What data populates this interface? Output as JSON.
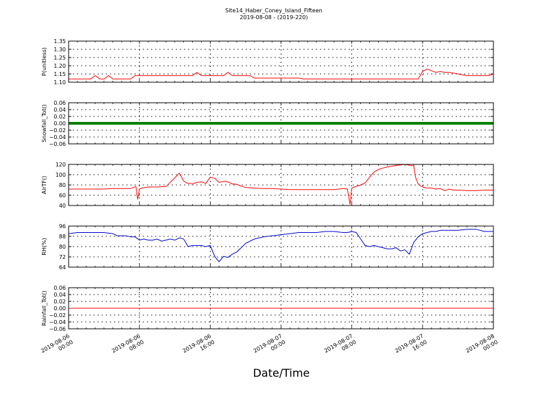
{
  "title": "Site14_Haber_Coney_Island_Fifteen",
  "subtitle": "2019-08-08 - (2019-220)",
  "xlabel": "Date/Time",
  "x_ticks": [
    [
      "2019-08-06",
      "00:00"
    ],
    [
      "2019-08-06",
      "08:00"
    ],
    [
      "2019-08-06",
      "16:00"
    ],
    [
      "2019-08-07",
      "00:00"
    ],
    [
      "2019-08-07",
      "08:00"
    ],
    [
      "2019-08-07",
      "16:00"
    ],
    [
      "2019-08-08",
      "00:00"
    ]
  ],
  "chart_data": [
    {
      "type": "line",
      "ylabel": "P(unitless)",
      "ylim": [
        1.1,
        1.35
      ],
      "yticks": [
        "1.10",
        "1.15",
        "1.20",
        "1.25",
        "1.30",
        "1.35"
      ],
      "grid": true,
      "series": [
        {
          "color": "#ff0000",
          "x": [
            0,
            0.5,
            1,
            1.5,
            2,
            2.5,
            3,
            3.5,
            4,
            4.5,
            5,
            5.5,
            6,
            6.5,
            7,
            7.5,
            8,
            8.5,
            9,
            9.5,
            10,
            10.5,
            11,
            11.5,
            12,
            12.5,
            13,
            13.5,
            14,
            14.5,
            15,
            15.5,
            16,
            16.5,
            17,
            17.5,
            18,
            18.5,
            19,
            19.5,
            20,
            20.5,
            21,
            21.5,
            22,
            22.5,
            23,
            23.5,
            24,
            24.5,
            25,
            25.5,
            26,
            26.5,
            27,
            27.5,
            28,
            28.5,
            29,
            29.5,
            30,
            30.5,
            31,
            31.5,
            32,
            32.5,
            33,
            33.5,
            34,
            34.5,
            35,
            35.5,
            36,
            36.5,
            37,
            37.5,
            38,
            38.5,
            39,
            39.5,
            40,
            40.5,
            41,
            41.5,
            42,
            42.5,
            43,
            43.5,
            44,
            44.5,
            45,
            45.5,
            46,
            46.5,
            47,
            47.5,
            48
          ],
          "y": [
            1.12,
            1.12,
            1.12,
            1.12,
            1.12,
            1.12,
            1.14,
            1.12,
            1.12,
            1.14,
            1.12,
            1.12,
            1.12,
            1.12,
            1.12,
            1.14,
            1.14,
            1.14,
            1.14,
            1.14,
            1.14,
            1.14,
            1.14,
            1.14,
            1.14,
            1.14,
            1.14,
            1.14,
            1.14,
            1.16,
            1.14,
            1.14,
            1.14,
            1.14,
            1.14,
            1.14,
            1.16,
            1.14,
            1.14,
            1.14,
            1.14,
            1.14,
            1.125,
            1.125,
            1.125,
            1.125,
            1.125,
            1.125,
            1.125,
            1.125,
            1.125,
            1.125,
            1.125,
            1.12,
            1.12,
            1.12,
            1.12,
            1.12,
            1.12,
            1.12,
            1.12,
            1.12,
            1.12,
            1.12,
            1.12,
            1.12,
            1.12,
            1.12,
            1.12,
            1.12,
            1.12,
            1.12,
            1.12,
            1.12,
            1.12,
            1.12,
            1.12,
            1.12,
            1.12,
            1.12,
            1.165,
            1.18,
            1.17,
            1.16,
            1.165,
            1.16,
            1.16,
            1.155,
            1.15,
            1.145,
            1.14,
            1.14,
            1.14,
            1.14,
            1.14,
            1.14,
            1.15
          ]
        }
      ]
    },
    {
      "type": "line",
      "ylabel": "Snowfall_Tot()",
      "ylim": [
        -0.06,
        0.06
      ],
      "yticks": [
        "−0.06",
        "−0.04",
        "−0.02",
        "0.00",
        "0.02",
        "0.04",
        "0.06"
      ],
      "grid": true,
      "series": [
        {
          "color": "#008000",
          "marker": "dot",
          "x": [
            0,
            48
          ],
          "y": [
            0,
            0
          ]
        }
      ]
    },
    {
      "type": "line",
      "ylabel": "AirTF()",
      "ylim": [
        40,
        120
      ],
      "yticks": [
        "40",
        "60",
        "80",
        "100",
        "120"
      ],
      "grid": true,
      "series": [
        {
          "color": "#ff0000",
          "x": [
            0,
            1,
            2,
            3,
            4,
            5,
            6,
            7,
            7.6,
            7.8,
            8,
            8.3,
            9,
            10,
            11,
            12,
            12.5,
            13,
            13.3,
            14,
            14.5,
            15,
            15.5,
            16,
            16.5,
            17,
            17.5,
            18,
            18.5,
            19,
            20,
            21,
            22,
            23,
            24,
            25,
            26,
            27,
            28,
            29,
            30,
            31,
            31.5,
            31.8,
            32,
            32.3,
            33,
            33.5,
            34,
            34.5,
            35,
            35.5,
            36,
            37,
            38,
            39,
            39.2,
            39.5,
            39.8,
            40,
            40.5,
            41,
            41.5,
            42,
            42.5,
            43,
            43.5,
            44,
            45,
            46,
            47,
            48
          ],
          "y": [
            72,
            72,
            72,
            72,
            72,
            73,
            73,
            73,
            77,
            52,
            72,
            74,
            76,
            76,
            77,
            94,
            103,
            88,
            84,
            82,
            85,
            86,
            83,
            95,
            93,
            85,
            87,
            86,
            82,
            81,
            75,
            74,
            73,
            73,
            72,
            71,
            71,
            71,
            71,
            71,
            71,
            73,
            72,
            42,
            74,
            76,
            80,
            84,
            95,
            105,
            110,
            113,
            115,
            118,
            120,
            117,
            95,
            82,
            78,
            76,
            74,
            74,
            72,
            73,
            69,
            72,
            70,
            70,
            69,
            69,
            70,
            70
          ]
        }
      ]
    },
    {
      "type": "line",
      "ylabel": "RH(%)",
      "ylim": [
        60,
        98
      ],
      "yticks": [
        "64",
        "72",
        "80",
        "88",
        "96"
      ],
      "grid": true,
      "series": [
        {
          "color": "#0000cc",
          "x": [
            0,
            1,
            2,
            3,
            4,
            5,
            5.5,
            6,
            6.5,
            7,
            7.5,
            8,
            8.5,
            9,
            9.5,
            10,
            10.5,
            11,
            11.5,
            12,
            12.5,
            13,
            13.5,
            14,
            14.5,
            15,
            15.5,
            16,
            16.5,
            17,
            17.5,
            18,
            18.5,
            19,
            19.5,
            20,
            21,
            22,
            23,
            24,
            25,
            26,
            27,
            28,
            29,
            30,
            31,
            31.5,
            32,
            32.5,
            33,
            33.5,
            34,
            34.5,
            35,
            35.5,
            36,
            36.5,
            37,
            37.5,
            38,
            38.5,
            39,
            39.5,
            40,
            40.5,
            41,
            41.5,
            42,
            42.5,
            43,
            44,
            45,
            46,
            47,
            48
          ],
          "y": [
            91,
            92,
            92,
            92,
            92,
            91,
            89,
            89,
            89,
            88,
            88,
            85,
            86,
            85,
            85,
            86,
            84,
            85,
            86,
            85,
            87,
            86,
            79,
            80,
            80,
            80,
            79,
            80,
            70,
            65,
            70,
            69,
            72,
            74,
            78,
            82,
            86,
            88,
            89,
            90,
            91,
            92,
            92,
            92,
            93,
            93,
            92,
            92,
            93,
            92,
            86,
            80,
            79,
            80,
            79,
            78,
            77,
            77,
            78,
            75,
            76,
            72,
            83,
            88,
            91,
            92,
            93,
            93,
            94,
            94,
            94,
            94,
            95,
            95,
            93,
            93
          ]
        }
      ]
    },
    {
      "type": "line",
      "ylabel": "Rainfall_Tot()",
      "ylim": [
        -0.06,
        0.06
      ],
      "yticks": [
        "−0.06",
        "−0.04",
        "−0.02",
        "0.00",
        "0.02",
        "0.04",
        "0.06"
      ],
      "grid": true,
      "series": [
        {
          "color": "#ff0000",
          "x": [
            0,
            48
          ],
          "y": [
            0,
            0
          ]
        }
      ]
    }
  ]
}
